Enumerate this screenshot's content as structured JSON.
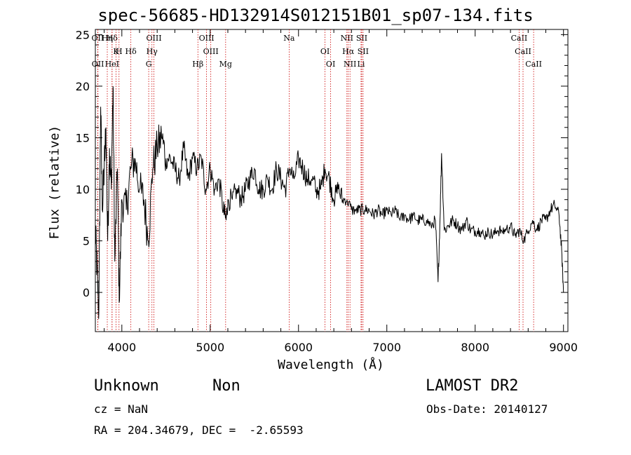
{
  "chart_data": {
    "type": "line",
    "title": "spec-56685-HD132914S012151B01_sp07-134.fits",
    "xlabel": "Wavelength (Å)",
    "ylabel": "Flux (relative)",
    "xlim": [
      3700,
      9050
    ],
    "ylim": [
      -3.8,
      25.5
    ],
    "x_ticks": [
      4000,
      5000,
      6000,
      7000,
      8000,
      9000
    ],
    "y_ticks": [
      0,
      5,
      10,
      15,
      20,
      25
    ],
    "grid": false,
    "series": [
      {
        "x": [
          3700,
          3720,
          3740,
          3760,
          3780,
          3800,
          3820,
          3840,
          3860,
          3880,
          3900,
          3920,
          3950,
          3970,
          4000,
          4050,
          4100,
          4150,
          4200,
          4250,
          4300,
          4350,
          4400,
          4450,
          4500,
          4550,
          4600,
          4650,
          4700,
          4750,
          4800,
          4850,
          4900,
          4950,
          5000,
          5050,
          5100,
          5150,
          5180,
          5200,
          5250,
          5300,
          5350,
          5400,
          5450,
          5500,
          5550,
          5600,
          5650,
          5700,
          5750,
          5800,
          5850,
          5900,
          5950,
          6000,
          6050,
          6100,
          6150,
          6200,
          6250,
          6300,
          6350,
          6400,
          6450,
          6500,
          6550,
          6600,
          6650,
          6700,
          6750,
          6800,
          6850,
          6900,
          6950,
          7000,
          7050,
          7100,
          7150,
          7200,
          7250,
          7300,
          7350,
          7400,
          7450,
          7500,
          7550,
          7580,
          7600,
          7620,
          7650,
          7700,
          7750,
          7800,
          7850,
          7900,
          7950,
          8000,
          8050,
          8100,
          8150,
          8200,
          8250,
          8300,
          8350,
          8400,
          8450,
          8500,
          8550,
          8600,
          8650,
          8700,
          8750,
          8800,
          8850,
          8900,
          8950,
          8980,
          9000
        ],
        "y": [
          6,
          2,
          -2,
          18,
          8,
          12,
          16,
          5,
          14,
          10,
          20,
          3,
          12,
          -1,
          9,
          8,
          12,
          13,
          10,
          9,
          5,
          12,
          14,
          15,
          13,
          13,
          12,
          11,
          14,
          11,
          13,
          12,
          13,
          10,
          12,
          10,
          11,
          8,
          7,
          9,
          9,
          10,
          9,
          10,
          11,
          12,
          10,
          10,
          11,
          10,
          12,
          11,
          10,
          12,
          11,
          13,
          12,
          11,
          11,
          10,
          10,
          12,
          11,
          9,
          10,
          9,
          9,
          8,
          8,
          8,
          8,
          8,
          7.5,
          8,
          7.5,
          8,
          7.5,
          8,
          7,
          7.5,
          7,
          7.5,
          7,
          7,
          7,
          6.5,
          7,
          1,
          6.5,
          13.5,
          6,
          6.5,
          7,
          6.5,
          6,
          7,
          6,
          6,
          6,
          5.5,
          6,
          5.5,
          6,
          6,
          6,
          6.5,
          5.5,
          6,
          5,
          6,
          7,
          6,
          7,
          7,
          8,
          8.5,
          7.5,
          4,
          0
        ]
      }
    ],
    "line_markers": [
      {
        "label": "Hδ",
        "x": 3889
      },
      {
        "label": "K",
        "x": 3934
      },
      {
        "label": "HeI",
        "x": 3889
      },
      {
        "label": "OII",
        "x": 3727
      },
      {
        "label": "H",
        "x": 3968
      },
      {
        "label": "OII",
        "x": 3729
      },
      {
        "label": "Hη",
        "x": 3835
      },
      {
        "label": "Hδ",
        "x": 4102
      },
      {
        "label": "G",
        "x": 4304
      },
      {
        "label": "OIII",
        "x": 4363
      },
      {
        "label": "Hγ",
        "x": 4341
      },
      {
        "label": "Hβ",
        "x": 4861
      },
      {
        "label": "OIII",
        "x": 4959
      },
      {
        "label": "OIII",
        "x": 5007
      },
      {
        "label": "Mg",
        "x": 5175
      },
      {
        "label": "Na",
        "x": 5894
      },
      {
        "label": "OI",
        "x": 6300
      },
      {
        "label": "OI",
        "x": 6364
      },
      {
        "label": "NII",
        "x": 6548
      },
      {
        "label": "Hα",
        "x": 6563
      },
      {
        "label": "NII",
        "x": 6583
      },
      {
        "label": "SII",
        "x": 6716
      },
      {
        "label": "SII",
        "x": 6731
      },
      {
        "label": "Li",
        "x": 6708
      },
      {
        "label": "CaII",
        "x": 8498
      },
      {
        "label": "CaII",
        "x": 8542
      },
      {
        "label": "CaII",
        "x": 8662
      }
    ]
  },
  "info": {
    "class_label": "Unknown",
    "subclass_label": "Non",
    "survey": "LAMOST DR2",
    "cz": "cz = NaN",
    "obs_date": "Obs-Date: 20140127",
    "radec": "RA = 204.34679, DEC =  -2.65593"
  }
}
